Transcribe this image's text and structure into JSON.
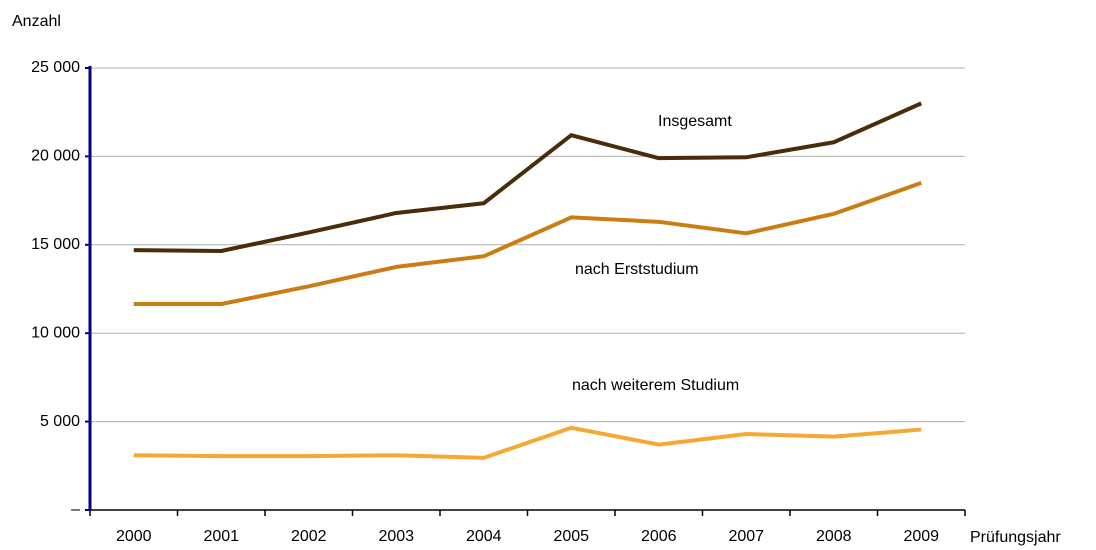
{
  "chart_data": {
    "type": "line",
    "y_axis_label": "Anzahl",
    "x_axis_label": "Prüfungsjahr",
    "categories": [
      "2000",
      "2001",
      "2002",
      "2003",
      "2004",
      "2005",
      "2006",
      "2007",
      "2008",
      "2009"
    ],
    "series": [
      {
        "name": "Insgesamt",
        "color": "#4a2c0a",
        "values": [
          14700,
          14650,
          15700,
          16800,
          17350,
          21200,
          19900,
          19950,
          20800,
          23000
        ]
      },
      {
        "name": "nach Erststudium",
        "color": "#c97d12",
        "values": [
          11650,
          11650,
          12650,
          13750,
          14350,
          16550,
          16300,
          15650,
          16750,
          18500
        ]
      },
      {
        "name": "nach weiterem Studium",
        "color": "#f5a833",
        "values": [
          3100,
          3050,
          3050,
          3100,
          2950,
          4650,
          3700,
          4300,
          4150,
          4550
        ]
      }
    ],
    "ylim": [
      0,
      25000
    ],
    "yticks": [
      {
        "value": 0,
        "label": "–"
      },
      {
        "value": 5000,
        "label": "5 000"
      },
      {
        "value": 10000,
        "label": "10 000"
      },
      {
        "value": 15000,
        "label": "15 000"
      },
      {
        "value": 20000,
        "label": "20 000"
      },
      {
        "value": 25000,
        "label": "25 000"
      }
    ],
    "grid": true
  }
}
